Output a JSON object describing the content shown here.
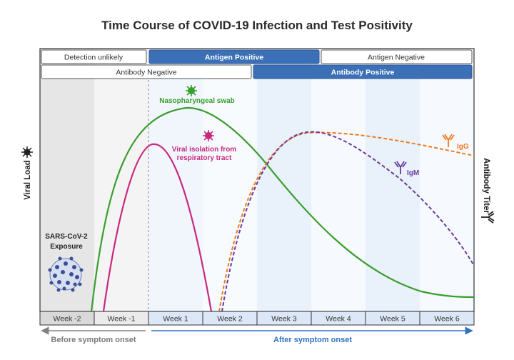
{
  "title": "Time Course of COVID-19 Infection and Test Positivity",
  "top_bars": {
    "row1": [
      "Detection unlikely",
      "Antigen Positive",
      "Antigen Negative"
    ],
    "row2": [
      "Antibody Negative",
      "Antibody Positive"
    ]
  },
  "weeks": [
    "Week -2",
    "Week -1",
    "Week 1",
    "Week 2",
    "Week 3",
    "Week 4",
    "Week 5",
    "Week 6"
  ],
  "onset": {
    "before": "Before symptom onset",
    "after": "After symptom onset"
  },
  "axes": {
    "left": "Viral Load",
    "right": "Antibody Titer"
  },
  "curve_labels": {
    "swab": "Nasopharyngeal swab",
    "isolation_line1": "Viral isolation from",
    "isolation_line2": "respiratory tract",
    "igg": "IgG",
    "igm": "IgM"
  },
  "exposure": {
    "line1": "SARS-CoV-2",
    "line2": "Exposure"
  },
  "colors": {
    "swab": "#3a9e2e",
    "isolation": "#c8287f",
    "igg": "#ee7a1e",
    "igm": "#6b3a9c",
    "positive_bar": "#3b6fb6",
    "after_arrow": "#2f72bd",
    "before_arrow": "#808080"
  }
}
